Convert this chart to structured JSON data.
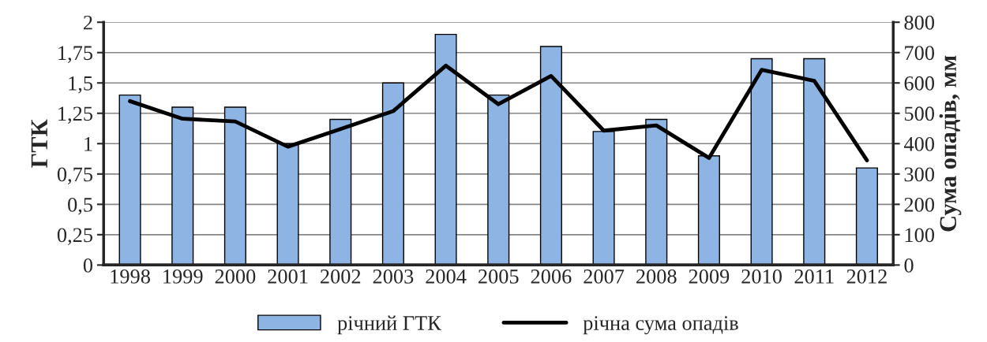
{
  "chart_data": {
    "type": "bar",
    "xlabel": null,
    "ylabel": "ГТК",
    "y2label": "Сума опадів, мм",
    "categories": [
      "1998",
      "1999",
      "2000",
      "2001",
      "2002",
      "2003",
      "2004",
      "2005",
      "2006",
      "2007",
      "2008",
      "2009",
      "2010",
      "2011",
      "2012"
    ],
    "series": [
      {
        "name": "річний ГТК",
        "color": "#8db4e2",
        "values": [
          1.4,
          1.3,
          1.3,
          1.0,
          1.2,
          1.5,
          1.9,
          1.4,
          1.8,
          1.1,
          1.2,
          0.9,
          1.7,
          1.7,
          0.8
        ]
      },
      {
        "name": "річна сума опадів",
        "type": "line",
        "axis": "y2",
        "color": "#000000",
        "values": [
          540,
          482,
          473,
          390,
          448,
          507,
          657,
          530,
          623,
          443,
          460,
          353,
          643,
          607,
          345
        ]
      }
    ],
    "ylim": [
      0,
      2
    ],
    "yticks": [
      0,
      {
        "value": 0.25,
        "label": "0,25"
      },
      {
        "value": 0.5,
        "label": "0,5"
      },
      {
        "value": 0.75,
        "label": "0,75"
      },
      1,
      {
        "value": 1.25,
        "label": "1,25"
      },
      {
        "value": 1.5,
        "label": "1,5"
      },
      {
        "value": 1.75,
        "label": "1,75"
      },
      2
    ],
    "y2lim": [
      0,
      800
    ],
    "y2ticks": [
      0,
      100,
      200,
      300,
      400,
      500,
      600,
      700,
      800
    ],
    "grid": "y",
    "legend": "bottom",
    "marker": "none",
    "line_style": "solid"
  }
}
